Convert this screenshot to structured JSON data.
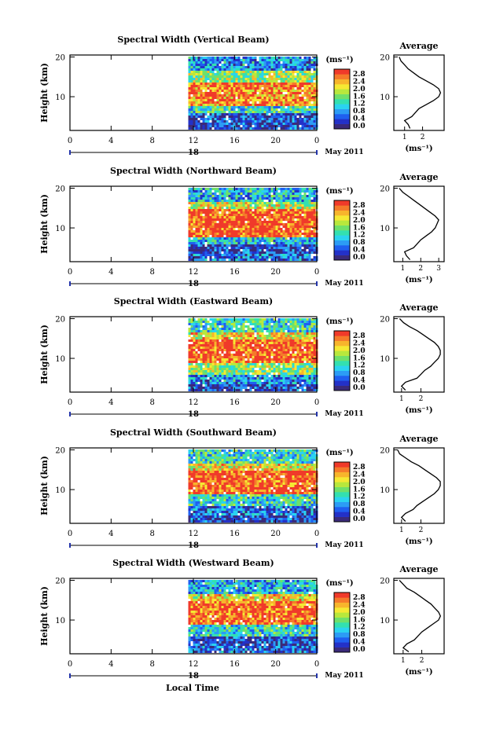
{
  "figure": {
    "xlabel": "Local Time",
    "date_label": "May 2011",
    "day_label": "18",
    "ylabel": "Height (km)",
    "unit_label": "(ms⁻¹)",
    "profile_title": "Average",
    "colorbar_ticks": [
      "2.8",
      "2.4",
      "2.0",
      "1.6",
      "1.2",
      "0.8",
      "0.4",
      "0.0"
    ],
    "x_ticks": [
      "0",
      "4",
      "8",
      "12",
      "16",
      "20",
      "0"
    ],
    "y_ticks": [
      "20",
      "10"
    ]
  },
  "chart_data": [
    {
      "type": "heatmap",
      "title": "Spectral Width (Vertical Beam)",
      "x": {
        "range": [
          0,
          24
        ],
        "ticks": [
          "0",
          "4",
          "8",
          "12",
          "16",
          "20",
          "0"
        ],
        "label": "Local Time"
      },
      "y": {
        "range": [
          1.5,
          20.5
        ],
        "ticks": [
          "20",
          "10"
        ],
        "label": "Height (km)"
      },
      "data_start_hour": 11.5,
      "colorbar": {
        "range": [
          0.0,
          2.8
        ],
        "unit": "(ms⁻¹)"
      },
      "bands_spectral_width": [
        {
          "height_range": [
            2,
            4
          ],
          "value": 0.4
        },
        {
          "height_range": [
            4,
            6
          ],
          "value": 0.4
        },
        {
          "height_range": [
            6,
            8
          ],
          "value": 1.2
        },
        {
          "height_range": [
            8,
            14
          ],
          "value": 2.4
        },
        {
          "height_range": [
            14,
            17
          ],
          "value": 1.6
        },
        {
          "height_range": [
            17,
            20
          ],
          "value": 0.8
        }
      ],
      "profile": {
        "title": "Average",
        "xticks": [
          "1",
          "2"
        ],
        "xrange": [
          0.4,
          3.2
        ],
        "points": [
          [
            1.3,
            2
          ],
          [
            1.2,
            3
          ],
          [
            1.0,
            4
          ],
          [
            1.4,
            5
          ],
          [
            1.6,
            6
          ],
          [
            1.8,
            7
          ],
          [
            2.2,
            8
          ],
          [
            2.6,
            9
          ],
          [
            2.9,
            10
          ],
          [
            3.0,
            11
          ],
          [
            2.9,
            12
          ],
          [
            2.6,
            13
          ],
          [
            2.2,
            14
          ],
          [
            1.8,
            15
          ],
          [
            1.5,
            16
          ],
          [
            1.2,
            17
          ],
          [
            1.0,
            18
          ],
          [
            0.8,
            19
          ],
          [
            0.7,
            20
          ]
        ]
      }
    },
    {
      "type": "heatmap",
      "title": "Spectral Width (Northward Beam)",
      "x": {
        "range": [
          0,
          24
        ],
        "ticks": [
          "0",
          "4",
          "8",
          "12",
          "16",
          "20",
          "0"
        ],
        "label": "Local Time"
      },
      "y": {
        "range": [
          1.5,
          20.5
        ],
        "ticks": [
          "20",
          "10"
        ],
        "label": "Height (km)"
      },
      "data_start_hour": 11.5,
      "colorbar": {
        "range": [
          0.0,
          2.8
        ],
        "unit": "(ms⁻¹)"
      },
      "bands_spectral_width": [
        {
          "height_range": [
            2,
            4
          ],
          "value": 0.6
        },
        {
          "height_range": [
            4,
            6
          ],
          "value": 0.4
        },
        {
          "height_range": [
            6,
            8
          ],
          "value": 1.0
        },
        {
          "height_range": [
            8,
            15
          ],
          "value": 2.6
        },
        {
          "height_range": [
            15,
            17
          ],
          "value": 1.8
        },
        {
          "height_range": [
            17,
            20
          ],
          "value": 1.0
        }
      ],
      "profile": {
        "title": "Average",
        "xticks": [
          "1",
          "2",
          "3"
        ],
        "xrange": [
          0.5,
          3.3
        ],
        "points": [
          [
            1.4,
            2
          ],
          [
            1.2,
            3
          ],
          [
            1.1,
            4
          ],
          [
            1.6,
            5
          ],
          [
            1.8,
            6
          ],
          [
            2.0,
            7
          ],
          [
            2.3,
            8
          ],
          [
            2.6,
            9
          ],
          [
            2.8,
            10
          ],
          [
            2.9,
            11
          ],
          [
            3.0,
            12
          ],
          [
            2.8,
            13
          ],
          [
            2.5,
            14
          ],
          [
            2.2,
            15
          ],
          [
            1.9,
            16
          ],
          [
            1.6,
            17
          ],
          [
            1.3,
            18
          ],
          [
            1.0,
            19
          ],
          [
            0.8,
            20
          ]
        ]
      }
    },
    {
      "type": "heatmap",
      "title": "Spectral Width (Eastward Beam)",
      "x": {
        "range": [
          0,
          24
        ],
        "ticks": [
          "0",
          "4",
          "8",
          "12",
          "16",
          "20",
          "0"
        ],
        "label": "Local Time"
      },
      "y": {
        "range": [
          1.5,
          20.5
        ],
        "ticks": [
          "20",
          "10"
        ],
        "label": "Height (km)"
      },
      "data_start_hour": 11.5,
      "colorbar": {
        "range": [
          0.0,
          2.8
        ],
        "unit": "(ms⁻¹)"
      },
      "bands_spectral_width": [
        {
          "height_range": [
            2,
            4
          ],
          "value": 0.4
        },
        {
          "height_range": [
            4,
            6
          ],
          "value": 0.8
        },
        {
          "height_range": [
            6,
            9
          ],
          "value": 1.6
        },
        {
          "height_range": [
            9,
            15
          ],
          "value": 2.6
        },
        {
          "height_range": [
            15,
            17
          ],
          "value": 2.0
        },
        {
          "height_range": [
            17,
            20
          ],
          "value": 1.2
        }
      ],
      "profile": {
        "title": "Average",
        "xticks": [
          "1",
          "2"
        ],
        "xrange": [
          0.6,
          3.2
        ],
        "points": [
          [
            1.2,
            2
          ],
          [
            1.0,
            3
          ],
          [
            1.2,
            4
          ],
          [
            1.8,
            5
          ],
          [
            2.0,
            6
          ],
          [
            2.2,
            7
          ],
          [
            2.5,
            8
          ],
          [
            2.7,
            9
          ],
          [
            2.9,
            10
          ],
          [
            3.0,
            11
          ],
          [
            3.0,
            12
          ],
          [
            2.9,
            13
          ],
          [
            2.7,
            14
          ],
          [
            2.4,
            15
          ],
          [
            2.1,
            16
          ],
          [
            1.8,
            17
          ],
          [
            1.4,
            18
          ],
          [
            1.1,
            19
          ],
          [
            0.9,
            20
          ]
        ]
      }
    },
    {
      "type": "heatmap",
      "title": "Spectral Width (Southward Beam)",
      "x": {
        "range": [
          0,
          24
        ],
        "ticks": [
          "0",
          "4",
          "8",
          "12",
          "16",
          "20",
          "0"
        ],
        "label": "Local Time"
      },
      "y": {
        "range": [
          1.5,
          20.5
        ],
        "ticks": [
          "20",
          "10"
        ],
        "label": "Height (km)"
      },
      "data_start_hour": 11.5,
      "colorbar": {
        "range": [
          0.0,
          2.8
        ],
        "unit": "(ms⁻¹)"
      },
      "bands_spectral_width": [
        {
          "height_range": [
            2,
            4
          ],
          "value": 0.4
        },
        {
          "height_range": [
            4,
            6
          ],
          "value": 0.6
        },
        {
          "height_range": [
            6,
            9
          ],
          "value": 1.2
        },
        {
          "height_range": [
            9,
            15
          ],
          "value": 2.6
        },
        {
          "height_range": [
            15,
            17
          ],
          "value": 2.0
        },
        {
          "height_range": [
            17,
            20
          ],
          "value": 1.2
        }
      ],
      "profile": {
        "title": "Average",
        "xticks": [
          "1",
          "2"
        ],
        "xrange": [
          0.6,
          3.2
        ],
        "points": [
          [
            1.2,
            2
          ],
          [
            1.0,
            3
          ],
          [
            1.2,
            4
          ],
          [
            1.6,
            5
          ],
          [
            1.8,
            6
          ],
          [
            2.1,
            7
          ],
          [
            2.4,
            8
          ],
          [
            2.7,
            9
          ],
          [
            2.9,
            10
          ],
          [
            3.0,
            11
          ],
          [
            3.0,
            12
          ],
          [
            2.8,
            13
          ],
          [
            2.5,
            14
          ],
          [
            2.2,
            15
          ],
          [
            1.9,
            16
          ],
          [
            1.5,
            17
          ],
          [
            1.2,
            18
          ],
          [
            0.9,
            19
          ],
          [
            0.8,
            20
          ]
        ]
      }
    },
    {
      "type": "heatmap",
      "title": "Spectral Width (Westward Beam)",
      "x": {
        "range": [
          0,
          24
        ],
        "ticks": [
          "0",
          "4",
          "8",
          "12",
          "16",
          "20",
          "0"
        ],
        "label": "Local Time"
      },
      "y": {
        "range": [
          1.5,
          20.5
        ],
        "ticks": [
          "20",
          "10"
        ],
        "label": "Height (km)"
      },
      "data_start_hour": 11.5,
      "colorbar": {
        "range": [
          0.0,
          2.8
        ],
        "unit": "(ms⁻¹)"
      },
      "bands_spectral_width": [
        {
          "height_range": [
            2,
            4
          ],
          "value": 0.6
        },
        {
          "height_range": [
            4,
            6
          ],
          "value": 0.4
        },
        {
          "height_range": [
            6,
            9
          ],
          "value": 1.2
        },
        {
          "height_range": [
            9,
            15
          ],
          "value": 2.6
        },
        {
          "height_range": [
            15,
            17
          ],
          "value": 2.0
        },
        {
          "height_range": [
            17,
            20
          ],
          "value": 1.0
        }
      ],
      "profile": {
        "title": "Average",
        "xticks": [
          "1",
          "2"
        ],
        "xrange": [
          0.5,
          3.2
        ],
        "points": [
          [
            1.3,
            2
          ],
          [
            1.0,
            3
          ],
          [
            1.2,
            4
          ],
          [
            1.6,
            5
          ],
          [
            1.8,
            6
          ],
          [
            2.0,
            7
          ],
          [
            2.3,
            8
          ],
          [
            2.6,
            9
          ],
          [
            2.9,
            10
          ],
          [
            3.0,
            11
          ],
          [
            2.9,
            12
          ],
          [
            2.7,
            13
          ],
          [
            2.5,
            14
          ],
          [
            2.2,
            15
          ],
          [
            1.9,
            16
          ],
          [
            1.6,
            17
          ],
          [
            1.2,
            18
          ],
          [
            1.0,
            19
          ],
          [
            0.8,
            20
          ]
        ]
      }
    }
  ]
}
